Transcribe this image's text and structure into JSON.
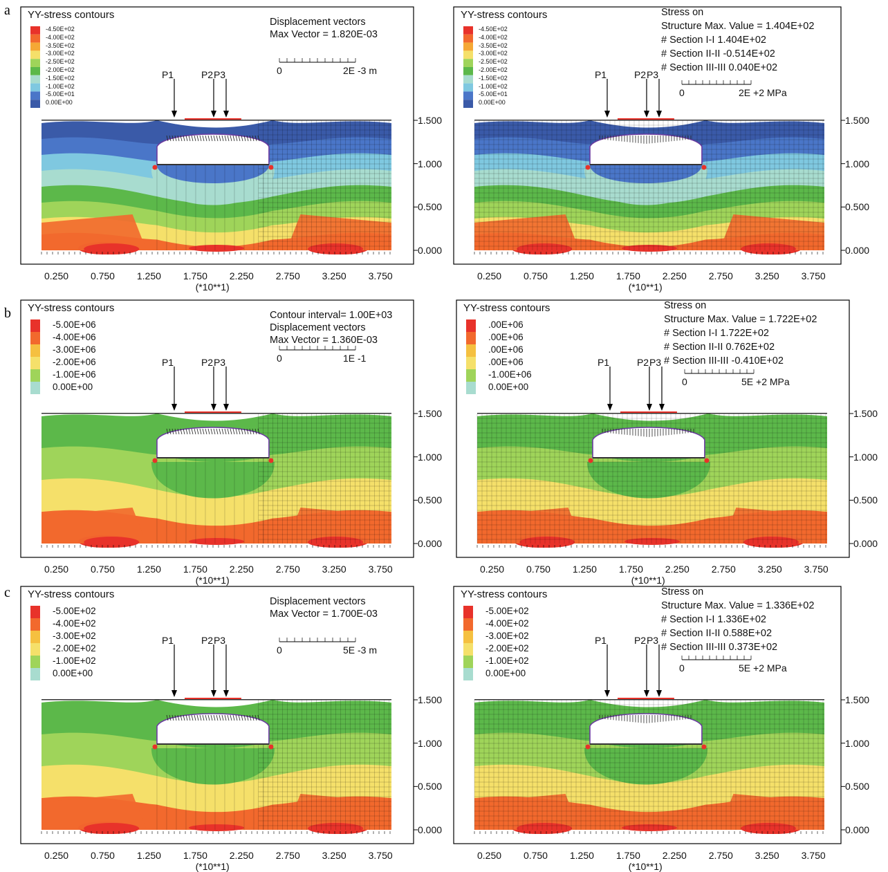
{
  "row_labels": [
    "a",
    "b",
    "c"
  ],
  "panels": [
    {
      "id": "a-left",
      "title": "YY-stress contours",
      "legend": [
        "-4.50E+02",
        "-4.00E+02",
        "-3.50E+02",
        "-3.00E+02",
        "-2.50E+02",
        "-2.00E+02",
        "-1.50E+02",
        "-1.00E+02",
        "-5.00E+01",
        "0.00E+00"
      ],
      "legend_colors": [
        "#e8322a",
        "#f2692d",
        "#f5a835",
        "#f5e06a",
        "#9fd45a",
        "#5cb84a",
        "#a8dccf",
        "#7fc8e0",
        "#4a76c8",
        "#3a5aa8"
      ],
      "info": [
        "Displacement vectors",
        "Max Vector =    1.820E-03"
      ],
      "scale": {
        "left": "0",
        "right": "2E -3 m"
      },
      "points": [
        "P1",
        "P2",
        "P3"
      ],
      "y_ticks": [
        "1.500",
        "1.000",
        "0.500",
        "0.000"
      ],
      "x_ticks": [
        "0.250",
        "0.750",
        "1.250",
        "1.750",
        "2.250",
        "2.750",
        "3.250",
        "3.750"
      ],
      "x_unit": "(*10**1)"
    },
    {
      "id": "a-right",
      "title": "YY-stress contours",
      "legend": [
        "-4.50E+02",
        "-4.00E+02",
        "-3.50E+02",
        "-3.00E+02",
        "-2.50E+02",
        "-2.00E+02",
        "-1.50E+02",
        "-1.00E+02",
        "-5.00E+01",
        "0.00E+00"
      ],
      "legend_colors": [
        "#e8322a",
        "#f2692d",
        "#f5a835",
        "#f5e06a",
        "#9fd45a",
        "#5cb84a",
        "#a8dccf",
        "#7fc8e0",
        "#4a76c8",
        "#3a5aa8"
      ],
      "info": [
        "Stress        on",
        "Structure    Max. Value = 1.404E+02",
        "# Section I-I          1.404E+02",
        "# Section II-II        -0.514E+02",
        "# Section III-III     0.040E+02"
      ],
      "scale": {
        "left": "0",
        "right": "2E +2 MPa"
      },
      "points": [
        "P1",
        "P2",
        "P3"
      ],
      "y_ticks": [
        "1.500",
        "1.000",
        "0.500",
        "0.000"
      ],
      "x_ticks": [
        "0.250",
        "0.750",
        "1.250",
        "1.750",
        "2.250",
        "2.750",
        "3.250",
        "3.750"
      ],
      "x_unit": "(*10**1)"
    },
    {
      "id": "b-left",
      "title": "YY-stress contours",
      "legend": [
        "-5.00E+06",
        "-4.00E+06",
        "-3.00E+06",
        "-2.00E+06",
        "-1.00E+06",
        "0.00E+00"
      ],
      "legend_colors": [
        "#e8322a",
        "#f2692d",
        "#f5c040",
        "#f5e06a",
        "#9fd45a",
        "#a8dccf"
      ],
      "info": [
        "Contour interval=  1.00E+03",
        "Displacement vectors",
        "Max Vector =    1.360E-03"
      ],
      "scale": {
        "left": "0",
        "right": "1E -1"
      },
      "points": [
        "P1",
        "P2",
        "P3"
      ],
      "y_ticks": [
        "1.500",
        "1.000",
        "0.500",
        "0.000"
      ],
      "x_ticks": [
        "0.250",
        "0.750",
        "1.250",
        "1.750",
        "2.250",
        "2.750",
        "3.250",
        "3.750"
      ],
      "x_unit": "(*10**1)"
    },
    {
      "id": "b-right",
      "title": "YY-stress contours",
      "legend": [
        ".00E+06",
        ".00E+06",
        ".00E+06",
        ".00E+06",
        "-1.00E+06",
        "0.00E+00"
      ],
      "legend_colors": [
        "#e8322a",
        "#f2692d",
        "#f5c040",
        "#f5e06a",
        "#9fd45a",
        "#a8dccf"
      ],
      "info": [
        "Stress        on",
        "Structure    Max. Value = 1.722E+02",
        "# Section I-I          1.722E+02",
        "# Section II-II         0.762E+02",
        "# Section III-III      -0.410E+02"
      ],
      "scale": {
        "left": "0",
        "right": "5E +2 MPa"
      },
      "points": [
        "P1",
        "P2",
        "P3"
      ],
      "y_ticks": [
        "1.500",
        "1.000",
        "0.500",
        "0.000"
      ],
      "x_ticks": [
        "0.250",
        "0.750",
        "1.250",
        "1.750",
        "2.250",
        "2.750",
        "3.250",
        "3.750"
      ],
      "x_unit": "(*10**1)"
    },
    {
      "id": "c-left",
      "title": "YY-stress contours",
      "legend": [
        "-5.00E+02",
        "-4.00E+02",
        "-3.00E+02",
        "-2.00E+02",
        "-1.00E+02",
        "0.00E+00"
      ],
      "legend_colors": [
        "#e8322a",
        "#f2692d",
        "#f5c040",
        "#f5e06a",
        "#9fd45a",
        "#a8dccf"
      ],
      "info": [
        "Displacement vectors",
        "Max Vector =    1.700E-03"
      ],
      "scale": {
        "left": "0",
        "right": "5E -3 m"
      },
      "points": [
        "P1",
        "P2",
        "P3"
      ],
      "y_ticks": [
        "1.500",
        "1.000",
        "0.500",
        "0.000"
      ],
      "x_ticks": [
        "0.250",
        "0.750",
        "1.250",
        "1.750",
        "2.250",
        "2.750",
        "3.250",
        "3.750"
      ],
      "x_unit": "(*10**1)"
    },
    {
      "id": "c-right",
      "title": "YY-stress contours",
      "legend": [
        "-5.00E+02",
        "-4.00E+02",
        "-3.00E+02",
        "-2.00E+02",
        "-1.00E+02",
        "0.00E+00"
      ],
      "legend_colors": [
        "#e8322a",
        "#f2692d",
        "#f5c040",
        "#f5e06a",
        "#9fd45a",
        "#a8dccf"
      ],
      "info": [
        "Stress        on",
        "Structure    Max. Value = 1.336E+02",
        "# Section I-I          1.336E+02",
        "# Section II-II         0.588E+02",
        "# Section III-III      0.373E+02"
      ],
      "scale": {
        "left": "0",
        "right": "5E +2 MPa"
      },
      "points": [
        "P1",
        "P2",
        "P3"
      ],
      "y_ticks": [
        "1.500",
        "1.000",
        "0.500",
        "0.000"
      ],
      "x_ticks": [
        "0.250",
        "0.750",
        "1.250",
        "1.750",
        "2.250",
        "2.750",
        "3.250",
        "3.750"
      ],
      "x_unit": "(*10**1)"
    }
  ],
  "colors": {
    "red": "#e8322a",
    "orange": "#f2692d",
    "yellow": "#f5e06a",
    "light_green": "#9fd45a",
    "green": "#5cb84a",
    "cyan": "#a8dccf",
    "light_blue": "#7fc8e0",
    "blue": "#4a76c8",
    "dark_blue": "#3a5aa8"
  }
}
